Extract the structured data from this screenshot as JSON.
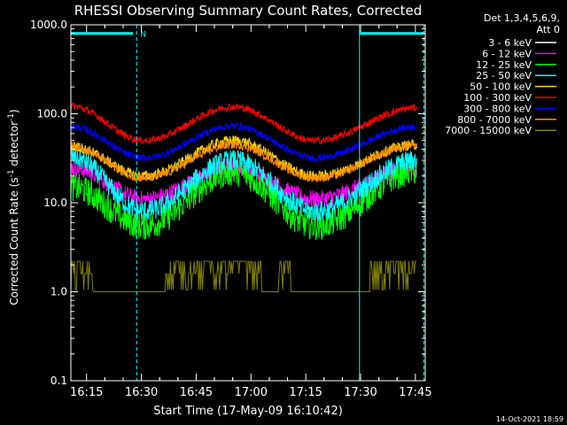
{
  "chart_data": {
    "type": "line",
    "title": "RHESSI Observing Summary Count Rates, Corrected",
    "xlabel": "Start Time (17-May-09 16:10:42)",
    "ylabel_main": "Corrected Count Rate (s",
    "ylabel_exp1": "-1",
    "ylabel_mid": " detector",
    "ylabel_exp2": "-1",
    "ylabel_end": ")",
    "yscale": "log",
    "ylim": [
      0.1,
      1000
    ],
    "xlim_minutes": [
      0,
      97
    ],
    "x_ticks": [
      {
        "m": 4.3,
        "label": "16:15"
      },
      {
        "m": 19.3,
        "label": "16:30"
      },
      {
        "m": 34.3,
        "label": "16:45"
      },
      {
        "m": 49.3,
        "label": "17:00"
      },
      {
        "m": 64.3,
        "label": "17:15"
      },
      {
        "m": 79.3,
        "label": "17:30"
      },
      {
        "m": 94.3,
        "label": "17:45"
      }
    ],
    "y_ticks": [
      {
        "v": 0.1,
        "label": "0.1"
      },
      {
        "v": 1,
        "label": "1.0"
      },
      {
        "v": 10,
        "label": "10.0"
      },
      {
        "v": 100,
        "label": "100.0"
      },
      {
        "v": 1000,
        "label": "1000.0"
      }
    ],
    "legend_header": [
      "Det 1,3,4,5,6,9,",
      "Att 0"
    ],
    "night_lines_minutes": [
      0,
      18,
      79,
      96.6
    ],
    "night_line_styles": [
      "solid",
      "dashed",
      "solid",
      "dashed"
    ],
    "saa_marker": {
      "label": "N",
      "start_m": 0,
      "end_m": 18,
      "start2_m": 79,
      "end2_m": 96.6,
      "value": 800
    },
    "series": [
      {
        "name": "3 - 6 keV",
        "color": "#000000",
        "start": 17,
        "dip": 6.5,
        "peak": 17,
        "end": 17,
        "noise": 0.12
      },
      {
        "name": "6 - 12 keV",
        "color": "#ff00ff",
        "start": 25,
        "dip": 11,
        "peak": 25,
        "end": 25,
        "noise": 0.1
      },
      {
        "name": "12 - 25 keV",
        "color": "#00ff00",
        "start": 15,
        "dip": 5.5,
        "peak": 22,
        "end": 23,
        "noise": 0.16
      },
      {
        "name": "25 - 50 keV",
        "color": "#00ffff",
        "start": 33,
        "dip": 8,
        "peak": 30,
        "end": 30,
        "noise": 0.12
      },
      {
        "name": "50 - 100 keV",
        "color": "#ffd400",
        "start": 43,
        "dip": 20,
        "peak": 50,
        "end": 45,
        "noise": 0.06
      },
      {
        "name": "100 - 300 keV",
        "color": "#ff0000",
        "start": 122,
        "dip": 50,
        "peak": 120,
        "end": 117,
        "noise": 0.04
      },
      {
        "name": "300 - 800 keV",
        "color": "#0000ff",
        "start": 72,
        "dip": 32,
        "peak": 73,
        "end": 72,
        "noise": 0.04
      },
      {
        "name": "800 - 7000 keV",
        "color": "#ff8c00",
        "start": 43,
        "dip": 19,
        "peak": 45,
        "end": 45,
        "noise": 0.05
      },
      {
        "name": "7000 - 15000 keV",
        "color": "#808000",
        "start": 2.2,
        "dip": 1,
        "peak": 2.2,
        "end": 2.2,
        "noise": 0.3
      }
    ]
  },
  "footer": {
    "timestamp": "14-Oct-2021 18:59"
  }
}
